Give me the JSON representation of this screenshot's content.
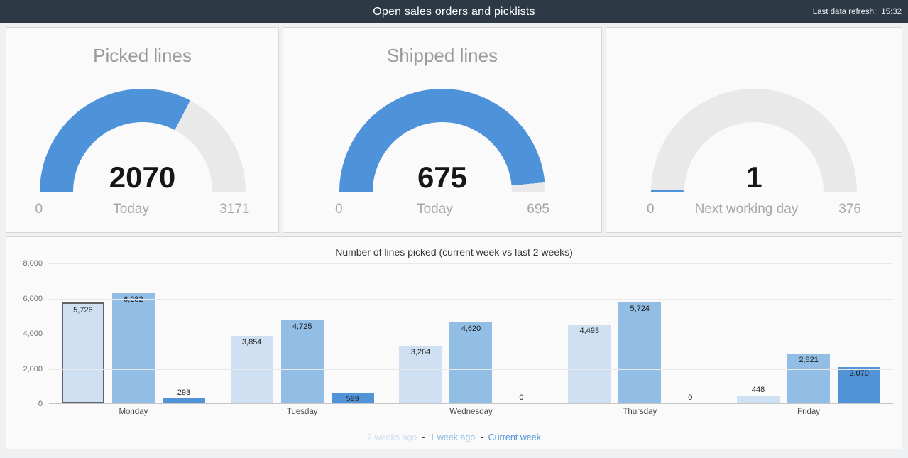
{
  "header": {
    "title": "Open sales orders and picklists",
    "refresh_label": "Last data refresh:",
    "refresh_time": "15:32"
  },
  "colors": {
    "header_bg": "#2d3a46",
    "gauge_fill": "#4e92da",
    "gauge_track": "#e9e9e9",
    "card_bg": "#fafafa",
    "highlight_border": "#5f6368"
  },
  "gauges": [
    {
      "title": "Picked lines",
      "value": 2070,
      "min": 0,
      "max": 3171,
      "axis_label": "Today"
    },
    {
      "title": "Shipped lines",
      "value": 675,
      "min": 0,
      "max": 695,
      "axis_label": "Today"
    },
    {
      "title": "",
      "value": 1,
      "min": 0,
      "max": 376,
      "axis_label": "Next working day"
    }
  ],
  "chart_data": {
    "type": "bar",
    "title": "Number of lines picked (current week vs last 2 weeks)",
    "categories": [
      "Monday",
      "Tuesday",
      "Wednesday",
      "Thursday",
      "Friday"
    ],
    "series": [
      {
        "name": "2 weeks ago",
        "color": "#cfe0f2",
        "values": [
          5726,
          3854,
          3264,
          4493,
          448
        ]
      },
      {
        "name": "1 week ago",
        "color": "#92bde4",
        "values": [
          6282,
          4725,
          4620,
          5724,
          2821
        ]
      },
      {
        "name": "Current week",
        "color": "#5193d7",
        "values": [
          293,
          599,
          0,
          0,
          2070
        ]
      }
    ],
    "ylim": [
      0,
      8000
    ],
    "yticks": [
      "8,000",
      "6,000",
      "4,000",
      "2,000",
      "0"
    ],
    "grid": true,
    "legend_position": "bottom",
    "legend_separator": "-",
    "highlighted_bar": {
      "series": 0,
      "category": 0
    }
  }
}
